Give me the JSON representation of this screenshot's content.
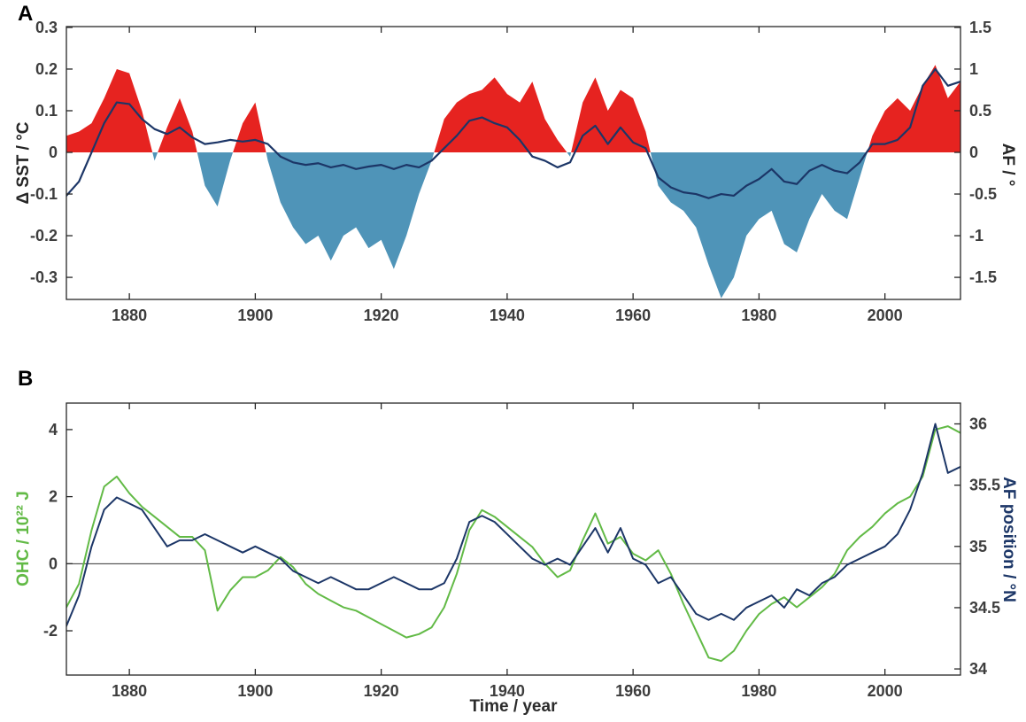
{
  "figure": {
    "background": "#ffffff"
  },
  "colors": {
    "axis": "#262626",
    "tick_label": "#3d3d3d",
    "zero_line": "#333333",
    "panel_label": "#000000"
  },
  "chart_data": [
    {
      "id": "panel_a",
      "type": "area+line",
      "panel_label": "A",
      "x": [
        1870,
        1872,
        1874,
        1876,
        1878,
        1880,
        1882,
        1884,
        1886,
        1888,
        1890,
        1892,
        1894,
        1896,
        1898,
        1900,
        1902,
        1904,
        1906,
        1908,
        1910,
        1912,
        1914,
        1916,
        1918,
        1920,
        1922,
        1924,
        1926,
        1928,
        1930,
        1932,
        1934,
        1936,
        1938,
        1940,
        1942,
        1944,
        1946,
        1948,
        1950,
        1952,
        1954,
        1956,
        1958,
        1960,
        1962,
        1964,
        1966,
        1968,
        1970,
        1972,
        1974,
        1976,
        1978,
        1980,
        1982,
        1984,
        1986,
        1988,
        1990,
        1992,
        1994,
        1996,
        1998,
        2000,
        2002,
        2004,
        2006,
        2008,
        2010,
        2012
      ],
      "series": [
        {
          "name": "SST anomaly",
          "style": "area",
          "axis": "left",
          "color_positive": "#e62320",
          "color_negative": "#4f94b8",
          "values": [
            0.04,
            0.05,
            0.07,
            0.13,
            0.2,
            0.19,
            0.1,
            -0.02,
            0.06,
            0.13,
            0.05,
            -0.08,
            -0.13,
            -0.02,
            0.07,
            0.12,
            -0.02,
            -0.12,
            -0.18,
            -0.22,
            -0.2,
            -0.26,
            -0.2,
            -0.18,
            -0.23,
            -0.21,
            -0.28,
            -0.2,
            -0.1,
            -0.02,
            0.08,
            0.12,
            0.14,
            0.15,
            0.18,
            0.14,
            0.12,
            0.17,
            0.08,
            0.03,
            -0.01,
            0.12,
            0.18,
            0.1,
            0.15,
            0.13,
            0.05,
            -0.08,
            -0.12,
            -0.14,
            -0.18,
            -0.27,
            -0.35,
            -0.3,
            -0.2,
            -0.16,
            -0.14,
            -0.22,
            -0.24,
            -0.16,
            -0.1,
            -0.14,
            -0.16,
            -0.06,
            0.04,
            0.1,
            0.13,
            0.1,
            0.16,
            0.21,
            0.13,
            0.17
          ]
        },
        {
          "name": "AF",
          "style": "line",
          "axis": "right",
          "color": "#1c3667",
          "width": 2.2,
          "values": [
            -0.52,
            -0.35,
            0.0,
            0.35,
            0.6,
            0.58,
            0.4,
            0.28,
            0.22,
            0.3,
            0.18,
            0.1,
            0.12,
            0.15,
            0.13,
            0.15,
            0.1,
            -0.05,
            -0.12,
            -0.15,
            -0.13,
            -0.18,
            -0.15,
            -0.2,
            -0.17,
            -0.15,
            -0.2,
            -0.15,
            -0.18,
            -0.1,
            0.05,
            0.2,
            0.38,
            0.42,
            0.35,
            0.3,
            0.15,
            -0.05,
            -0.1,
            -0.18,
            -0.12,
            0.2,
            0.32,
            0.1,
            0.3,
            0.12,
            0.05,
            -0.3,
            -0.42,
            -0.48,
            -0.5,
            -0.55,
            -0.5,
            -0.52,
            -0.4,
            -0.32,
            -0.2,
            -0.35,
            -0.38,
            -0.22,
            -0.15,
            -0.22,
            -0.25,
            -0.12,
            0.1,
            0.1,
            0.15,
            0.3,
            0.8,
            1.0,
            0.8,
            0.85
          ]
        }
      ],
      "left_axis": {
        "title": "Δ SST / °C",
        "title_color": "#262626",
        "ticks": [
          -0.3,
          -0.2,
          -0.1,
          0,
          0.1,
          0.2,
          0.3
        ],
        "range": [
          -0.353,
          0.302
        ]
      },
      "right_axis": {
        "title": "AF / °",
        "title_color": "#262626",
        "ticks": [
          -1.5,
          -1,
          -0.5,
          0,
          0.5,
          1,
          1.5
        ],
        "range": [
          -1.765,
          1.51
        ]
      },
      "x_axis": {
        "title": "",
        "ticks": [
          1880,
          1900,
          1920,
          1940,
          1960,
          1980,
          2000
        ],
        "range": [
          1870,
          2012
        ]
      },
      "zero_line": false
    },
    {
      "id": "panel_b",
      "type": "line",
      "panel_label": "B",
      "x": [
        1870,
        1872,
        1874,
        1876,
        1878,
        1880,
        1882,
        1884,
        1886,
        1888,
        1890,
        1892,
        1894,
        1896,
        1898,
        1900,
        1902,
        1904,
        1906,
        1908,
        1910,
        1912,
        1914,
        1916,
        1918,
        1920,
        1922,
        1924,
        1926,
        1928,
        1930,
        1932,
        1934,
        1936,
        1938,
        1940,
        1942,
        1944,
        1946,
        1948,
        1950,
        1952,
        1954,
        1956,
        1958,
        1960,
        1962,
        1964,
        1966,
        1968,
        1970,
        1972,
        1974,
        1976,
        1978,
        1980,
        1982,
        1984,
        1986,
        1988,
        1990,
        1992,
        1994,
        1996,
        1998,
        2000,
        2002,
        2004,
        2006,
        2008,
        2010,
        2012
      ],
      "series": [
        {
          "name": "OHC",
          "style": "line",
          "axis": "left",
          "color": "#62ba46",
          "width": 2,
          "values": [
            -1.3,
            -0.6,
            1.0,
            2.3,
            2.6,
            2.1,
            1.7,
            1.4,
            1.1,
            0.8,
            0.8,
            0.4,
            -1.4,
            -0.8,
            -0.4,
            -0.4,
            -0.2,
            0.2,
            -0.1,
            -0.6,
            -0.9,
            -1.1,
            -1.3,
            -1.4,
            -1.6,
            -1.8,
            -2.0,
            -2.2,
            -2.1,
            -1.9,
            -1.3,
            -0.3,
            1.0,
            1.6,
            1.4,
            1.1,
            0.8,
            0.5,
            0.0,
            -0.4,
            -0.2,
            0.7,
            1.5,
            0.6,
            0.8,
            0.3,
            0.1,
            0.4,
            -0.3,
            -1.2,
            -2.0,
            -2.8,
            -2.9,
            -2.6,
            -2.0,
            -1.5,
            -1.2,
            -1.0,
            -1.3,
            -1.0,
            -0.7,
            -0.3,
            0.4,
            0.8,
            1.1,
            1.5,
            1.8,
            2.0,
            2.6,
            4.0,
            4.1,
            3.9
          ]
        },
        {
          "name": "AF position",
          "style": "line",
          "axis": "right",
          "color": "#1c3667",
          "width": 2,
          "values": [
            34.35,
            34.6,
            35.0,
            35.3,
            35.4,
            35.35,
            35.3,
            35.15,
            35.0,
            35.05,
            35.05,
            35.1,
            35.05,
            35.0,
            34.95,
            35.0,
            34.95,
            34.9,
            34.8,
            34.75,
            34.7,
            34.75,
            34.7,
            34.65,
            34.65,
            34.7,
            34.75,
            34.7,
            34.65,
            34.65,
            34.7,
            34.9,
            35.2,
            35.25,
            35.2,
            35.1,
            35.0,
            34.9,
            34.85,
            34.9,
            34.85,
            35.0,
            35.15,
            34.95,
            35.15,
            34.9,
            34.85,
            34.7,
            34.75,
            34.6,
            34.45,
            34.4,
            34.45,
            34.4,
            34.5,
            34.55,
            34.6,
            34.5,
            34.65,
            34.6,
            34.7,
            34.75,
            34.85,
            34.9,
            34.95,
            35.0,
            35.1,
            35.3,
            35.6,
            36.0,
            35.6,
            35.65
          ]
        }
      ],
      "left_axis": {
        "title": "OHC / 10²² J",
        "title_color": "#62ba46",
        "ticks": [
          -2,
          0,
          2,
          4
        ],
        "range": [
          -3.32,
          4.79
        ]
      },
      "right_axis": {
        "title": "AF position / °N",
        "title_color": "#1c3667",
        "ticks": [
          34,
          34.5,
          35,
          35.5,
          36
        ],
        "range": [
          33.95,
          36.17
        ]
      },
      "x_axis": {
        "title": "Time / year",
        "title_color": "#2b2b2b",
        "ticks": [
          1880,
          1900,
          1920,
          1940,
          1960,
          1980,
          2000
        ],
        "range": [
          1870,
          2012
        ]
      },
      "zero_line": true
    }
  ]
}
